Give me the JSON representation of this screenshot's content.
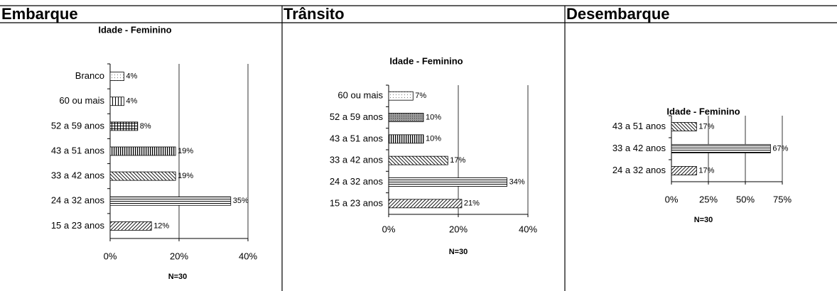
{
  "headers": [
    "Embarque",
    "Trânsito",
    "Desembarque"
  ],
  "chart_data": [
    {
      "type": "bar",
      "orientation": "horizontal",
      "title": "Idade - Feminino",
      "categories": [
        "Branco",
        "60 ou mais",
        "52 a 59 anos",
        "43 a 51 anos",
        "33 a 42 anos",
        "24 a 32 anos",
        "15 a 23 anos"
      ],
      "values": [
        4,
        4,
        8,
        19,
        19,
        35,
        12
      ],
      "value_labels": [
        "4%",
        "4%",
        "8%",
        "19%",
        "19%",
        "35%",
        "12%"
      ],
      "xlim": [
        0,
        40
      ],
      "xticks": [
        {
          "value": 0,
          "label": "0%"
        },
        {
          "value": 20,
          "label": "20%"
        },
        {
          "value": 40,
          "label": "40%"
        }
      ],
      "grid": true,
      "annotation": "N=30"
    },
    {
      "type": "bar",
      "orientation": "horizontal",
      "title": "Idade - Feminino",
      "categories": [
        "60 ou mais",
        "52 a 59 anos",
        "43 a 51 anos",
        "33 a 42 anos",
        "24 a 32 anos",
        "15 a 23 anos"
      ],
      "values": [
        7,
        10,
        10,
        17,
        34,
        21
      ],
      "value_labels": [
        "7%",
        "10%",
        "10%",
        "17%",
        "34%",
        "21%"
      ],
      "xlim": [
        0,
        40
      ],
      "xticks": [
        {
          "value": 0,
          "label": "0%"
        },
        {
          "value": 20,
          "label": "20%"
        },
        {
          "value": 40,
          "label": "40%"
        }
      ],
      "grid": true,
      "annotation": "N=30"
    },
    {
      "type": "bar",
      "orientation": "horizontal",
      "title": "Idade - Feminino",
      "categories": [
        "43 a 51 anos",
        "33 a 42 anos",
        "24 a 32 anos"
      ],
      "values": [
        17,
        67,
        17
      ],
      "value_labels": [
        "17%",
        "67%",
        "17%"
      ],
      "xlim": [
        0,
        75
      ],
      "xticks": [
        {
          "value": 0,
          "label": "0%"
        },
        {
          "value": 25,
          "label": "25%"
        },
        {
          "value": 50,
          "label": "50%"
        },
        {
          "value": 75,
          "label": "75%"
        }
      ],
      "grid": true,
      "annotation": "N=30"
    }
  ]
}
